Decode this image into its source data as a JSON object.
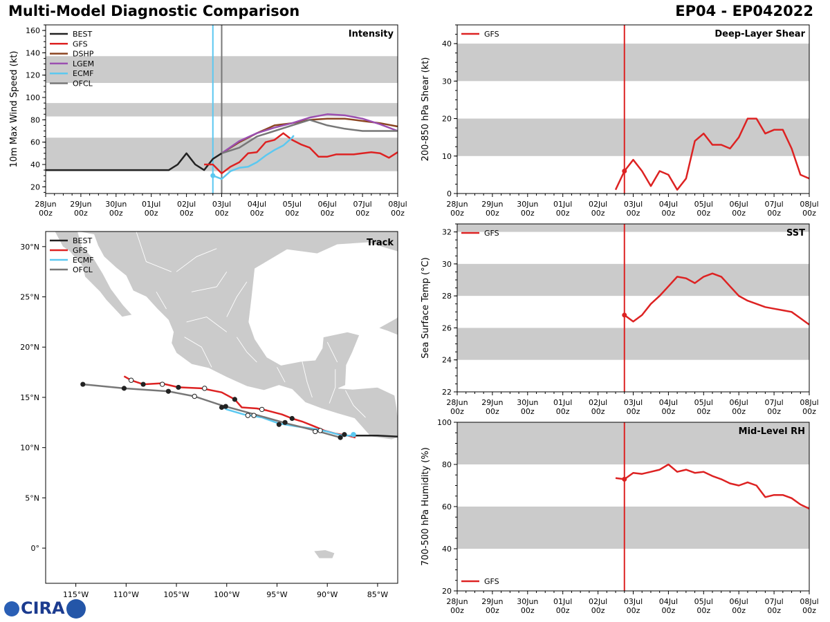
{
  "header": {
    "title": "Multi-Model Diagnostic Comparison",
    "storm_id": "EP04 - EP042022"
  },
  "logo_text": "CIRA",
  "colors": {
    "BEST": "#222222",
    "GFS": "#dd2222",
    "DSHP": "#8b4520",
    "LGEM": "#9b4fb0",
    "ECMF": "#5bc8f0",
    "OFCL": "#777777",
    "band": "#cbcbcb"
  },
  "time_labels": [
    "28Jun",
    "29Jun",
    "30Jun",
    "01Jul",
    "02Jul",
    "03Jul",
    "04Jul",
    "05Jul",
    "06Jul",
    "07Jul",
    "08Jul"
  ],
  "time_sub": "00z",
  "chart_data": [
    {
      "id": "intensity",
      "type": "line",
      "title": "Intensity",
      "ylabel": "10m Max Wind Speed (kt)",
      "xlim": [
        0,
        10
      ],
      "ylim": [
        14,
        165
      ],
      "yticks": [
        20,
        40,
        60,
        80,
        100,
        120,
        140,
        160
      ],
      "bands": [
        [
          34,
          64
        ],
        [
          83,
          95
        ],
        [
          113,
          137
        ]
      ],
      "vlines": [
        {
          "x": 4.75,
          "color": "ECMF"
        },
        {
          "x": 5.0,
          "color": "OFCL"
        }
      ],
      "legend": [
        "BEST",
        "GFS",
        "DSHP",
        "LGEM",
        "ECMF",
        "OFCL"
      ],
      "series": [
        {
          "name": "BEST",
          "points": [
            [
              0,
              35
            ],
            [
              3.5,
              35
            ],
            [
              3.75,
              40
            ],
            [
              4.0,
              50
            ],
            [
              4.25,
              40
            ],
            [
              4.5,
              35
            ],
            [
              4.75,
              45
            ],
            [
              5.0,
              50
            ]
          ]
        },
        {
          "name": "GFS",
          "points": [
            [
              4.5,
              40
            ],
            [
              4.75,
              40
            ],
            [
              5.0,
              32
            ],
            [
              5.25,
              38
            ],
            [
              5.5,
              42
            ],
            [
              5.75,
              50
            ],
            [
              6.0,
              51
            ],
            [
              6.25,
              60
            ],
            [
              6.5,
              62
            ],
            [
              6.75,
              68
            ],
            [
              7.0,
              62
            ],
            [
              7.25,
              58
            ],
            [
              7.5,
              55
            ],
            [
              7.75,
              47
            ],
            [
              8.0,
              47
            ],
            [
              8.25,
              49
            ],
            [
              8.75,
              49
            ],
            [
              9.0,
              50
            ],
            [
              9.25,
              51
            ],
            [
              9.5,
              50
            ],
            [
              9.75,
              46
            ],
            [
              10,
              51
            ]
          ]
        },
        {
          "name": "DSHP",
          "points": [
            [
              5.0,
              50
            ],
            [
              5.5,
              60
            ],
            [
              6.0,
              68
            ],
            [
              6.5,
              75
            ],
            [
              7.0,
              77
            ],
            [
              7.5,
              80
            ],
            [
              8.0,
              81
            ],
            [
              8.5,
              81
            ],
            [
              9.0,
              79
            ],
            [
              9.5,
              77
            ],
            [
              10,
              74
            ]
          ]
        },
        {
          "name": "LGEM",
          "points": [
            [
              5.0,
              50
            ],
            [
              5.5,
              61
            ],
            [
              6.0,
              68
            ],
            [
              6.5,
              73
            ],
            [
              7.0,
              77
            ],
            [
              7.5,
              82
            ],
            [
              8.0,
              85
            ],
            [
              8.5,
              84
            ],
            [
              9.0,
              81
            ],
            [
              9.5,
              76
            ],
            [
              10,
              70
            ]
          ]
        },
        {
          "name": "ECMF",
          "points": [
            [
              4.75,
              30
            ],
            [
              5.0,
              27
            ],
            [
              5.25,
              34
            ],
            [
              5.5,
              37
            ],
            [
              5.75,
              38
            ],
            [
              6.0,
              42
            ],
            [
              6.25,
              48
            ],
            [
              6.5,
              53
            ],
            [
              6.75,
              57
            ],
            [
              7.0,
              64
            ],
            [
              7.05,
              66
            ]
          ]
        },
        {
          "name": "OFCL",
          "points": [
            [
              5.0,
              50
            ],
            [
              5.5,
              55
            ],
            [
              6.0,
              65
            ],
            [
              6.5,
              70
            ],
            [
              7.0,
              75
            ],
            [
              7.5,
              80
            ],
            [
              8.0,
              75
            ],
            [
              8.5,
              72
            ],
            [
              9.0,
              70
            ],
            [
              10,
              70
            ]
          ]
        }
      ],
      "markers": [
        {
          "series": "ECMF",
          "x": 4.75,
          "y": 30
        }
      ]
    },
    {
      "id": "shear",
      "type": "line",
      "title": "Deep-Layer Shear",
      "ylabel": "200-850 hPa Shear (kt)",
      "xlim": [
        0,
        10
      ],
      "ylim": [
        0,
        45
      ],
      "yticks": [
        0,
        10,
        20,
        30,
        40
      ],
      "bands": [
        [
          10,
          20
        ],
        [
          30,
          40
        ]
      ],
      "vlines": [
        {
          "x": 4.75,
          "color": "GFS"
        }
      ],
      "legend": [
        "GFS"
      ],
      "series": [
        {
          "name": "GFS",
          "points": [
            [
              4.5,
              1
            ],
            [
              4.75,
              6
            ],
            [
              5.0,
              9
            ],
            [
              5.25,
              6
            ],
            [
              5.5,
              2
            ],
            [
              5.75,
              6
            ],
            [
              6.0,
              5
            ],
            [
              6.25,
              1
            ],
            [
              6.5,
              4
            ],
            [
              6.75,
              14
            ],
            [
              7.0,
              16
            ],
            [
              7.25,
              13
            ],
            [
              7.5,
              13
            ],
            [
              7.75,
              12
            ],
            [
              8.0,
              15
            ],
            [
              8.25,
              20
            ],
            [
              8.5,
              20
            ],
            [
              8.75,
              16
            ],
            [
              9.0,
              17
            ],
            [
              9.25,
              17
            ],
            [
              9.5,
              12
            ],
            [
              9.75,
              5
            ],
            [
              10,
              4
            ]
          ]
        }
      ],
      "markers": [
        {
          "series": "GFS",
          "x": 4.75,
          "y": 6
        }
      ]
    },
    {
      "id": "sst",
      "type": "line",
      "title": "SST",
      "ylabel": "Sea Surface Temp (°C)",
      "xlim": [
        0,
        10
      ],
      "ylim": [
        22,
        32.5
      ],
      "yticks": [
        22,
        24,
        26,
        28,
        30,
        32
      ],
      "bands": [
        [
          24,
          26
        ],
        [
          28,
          30
        ],
        [
          32,
          34
        ]
      ],
      "vlines": [
        {
          "x": 4.75,
          "color": "GFS"
        }
      ],
      "legend": [
        "GFS"
      ],
      "series": [
        {
          "name": "GFS",
          "points": [
            [
              4.75,
              26.8
            ],
            [
              5.0,
              26.4
            ],
            [
              5.25,
              26.8
            ],
            [
              5.5,
              27.5
            ],
            [
              5.75,
              28.0
            ],
            [
              6.0,
              28.6
            ],
            [
              6.25,
              29.2
            ],
            [
              6.5,
              29.1
            ],
            [
              6.75,
              28.8
            ],
            [
              7.0,
              29.2
            ],
            [
              7.25,
              29.4
            ],
            [
              7.5,
              29.2
            ],
            [
              7.75,
              28.6
            ],
            [
              8.0,
              28.0
            ],
            [
              8.25,
              27.7
            ],
            [
              8.5,
              27.5
            ],
            [
              8.75,
              27.3
            ],
            [
              9.0,
              27.2
            ],
            [
              9.25,
              27.1
            ],
            [
              9.5,
              27.0
            ],
            [
              9.75,
              26.6
            ],
            [
              10,
              26.2
            ]
          ]
        }
      ],
      "markers": [
        {
          "series": "GFS",
          "x": 4.75,
          "y": 26.8
        }
      ]
    },
    {
      "id": "rh",
      "type": "line",
      "title": "Mid-Level RH",
      "ylabel": "700-500 hPa Humidity (%)",
      "xlim": [
        0,
        10
      ],
      "ylim": [
        20,
        100
      ],
      "yticks": [
        20,
        40,
        60,
        80,
        100
      ],
      "bands": [
        [
          40,
          60
        ],
        [
          80,
          100
        ]
      ],
      "vlines": [
        {
          "x": 4.75,
          "color": "GFS"
        }
      ],
      "legend": [
        "GFS"
      ],
      "legend_pos": "bottom-left",
      "series": [
        {
          "name": "GFS",
          "points": [
            [
              4.5,
              73.5
            ],
            [
              4.75,
              73
            ],
            [
              5.0,
              76
            ],
            [
              5.25,
              75.5
            ],
            [
              5.5,
              76.5
            ],
            [
              5.75,
              77.5
            ],
            [
              6.0,
              80
            ],
            [
              6.25,
              76.5
            ],
            [
              6.5,
              77.5
            ],
            [
              6.75,
              76
            ],
            [
              7.0,
              76.5
            ],
            [
              7.25,
              74.5
            ],
            [
              7.5,
              73
            ],
            [
              7.75,
              71
            ],
            [
              8.0,
              70
            ],
            [
              8.25,
              71.5
            ],
            [
              8.5,
              70
            ],
            [
              8.75,
              64.5
            ],
            [
              9.0,
              65.5
            ],
            [
              9.25,
              65.5
            ],
            [
              9.5,
              64
            ],
            [
              9.75,
              61
            ],
            [
              10,
              59
            ]
          ]
        }
      ],
      "markers": [
        {
          "series": "GFS",
          "x": 4.75,
          "y": 73
        }
      ]
    },
    {
      "id": "track",
      "type": "scatter",
      "title": "Track",
      "xlim": [
        -118,
        -83
      ],
      "ylim": [
        -3.5,
        31.5
      ],
      "xticks": [
        -115,
        -110,
        -105,
        -100,
        -95,
        -90,
        -85
      ],
      "xticklabels": [
        "115°W",
        "110°W",
        "105°W",
        "100°W",
        "95°W",
        "90°W",
        "85°W"
      ],
      "yticks": [
        0,
        5,
        10,
        15,
        20,
        25,
        30
      ],
      "yticklabels": [
        "0°",
        "5°N",
        "10°N",
        "15°N",
        "20°N",
        "25°N",
        "30°N"
      ],
      "legend": [
        "BEST",
        "GFS",
        "ECMF",
        "OFCL"
      ],
      "series": [
        {
          "name": "BEST",
          "points": [
            [
              -83,
              11.1
            ],
            [
              -85,
              11.2
            ],
            [
              -87,
              11.2
            ],
            [
              -88.5,
              11.2
            ]
          ]
        },
        {
          "name": "GFS",
          "points": [
            [
              -87.2,
              11.0
            ],
            [
              -88.0,
              11.2
            ],
            [
              -89.2,
              11.4
            ],
            [
              -90.3,
              11.7
            ],
            [
              -91.5,
              12.2
            ],
            [
              -92.5,
              12.6
            ],
            [
              -93.5,
              12.9
            ],
            [
              -94.5,
              13.3
            ],
            [
              -96.0,
              13.7
            ],
            [
              -97.0,
              13.9
            ],
            [
              -98.5,
              14.0
            ],
            [
              -99.2,
              14.8
            ],
            [
              -100.5,
              15.5
            ],
            [
              -102.5,
              15.9
            ],
            [
              -104.8,
              16.0
            ],
            [
              -106.5,
              16.4
            ],
            [
              -108.3,
              16.3
            ],
            [
              -109.5,
              16.7
            ],
            [
              -110.2,
              17.1
            ]
          ]
        },
        {
          "name": "ECMF",
          "points": [
            [
              -87.4,
              11.2
            ],
            [
              -88.5,
              11.2
            ],
            [
              -90.0,
              11.6
            ],
            [
              -91.5,
              11.9
            ],
            [
              -93.0,
              12.1
            ],
            [
              -94.8,
              12.4
            ],
            [
              -96.5,
              13.0
            ],
            [
              -98.3,
              13.3
            ],
            [
              -100.0,
              13.8
            ],
            [
              -100.5,
              14.1
            ]
          ]
        },
        {
          "name": "OFCL",
          "points": [
            [
              -88.7,
              11.0
            ],
            [
              -91.2,
              11.7
            ],
            [
              -94.0,
              12.4
            ],
            [
              -97.2,
              13.3
            ],
            [
              -100.5,
              14.2
            ],
            [
              -103.2,
              15.1
            ],
            [
              -105.8,
              15.6
            ],
            [
              -110.2,
              15.9
            ],
            [
              -114.3,
              16.3
            ]
          ]
        }
      ],
      "filled_dots": [
        [
          -88.3,
          11.3
        ],
        [
          -88.7,
          11.0
        ],
        [
          -93.5,
          12.9
        ],
        [
          -94.2,
          12.5
        ],
        [
          -94.8,
          12.3
        ],
        [
          -99.2,
          14.8
        ],
        [
          -100.5,
          14.0
        ],
        [
          -100.1,
          14.1
        ],
        [
          -104.8,
          16.0
        ],
        [
          -105.8,
          15.6
        ],
        [
          -108.3,
          16.3
        ],
        [
          -110.2,
          15.9
        ],
        [
          -114.3,
          16.3
        ]
      ],
      "open_dots": [
        [
          -90.7,
          11.7
        ],
        [
          -91.2,
          11.6
        ],
        [
          -96.5,
          13.8
        ],
        [
          -97.3,
          13.2
        ],
        [
          -97.9,
          13.2
        ],
        [
          -102.2,
          15.9
        ],
        [
          -103.2,
          15.1
        ],
        [
          -106.4,
          16.3
        ],
        [
          -109.5,
          16.7
        ]
      ],
      "ecmf_marker": [
        -87.4,
        11.3
      ]
    }
  ]
}
